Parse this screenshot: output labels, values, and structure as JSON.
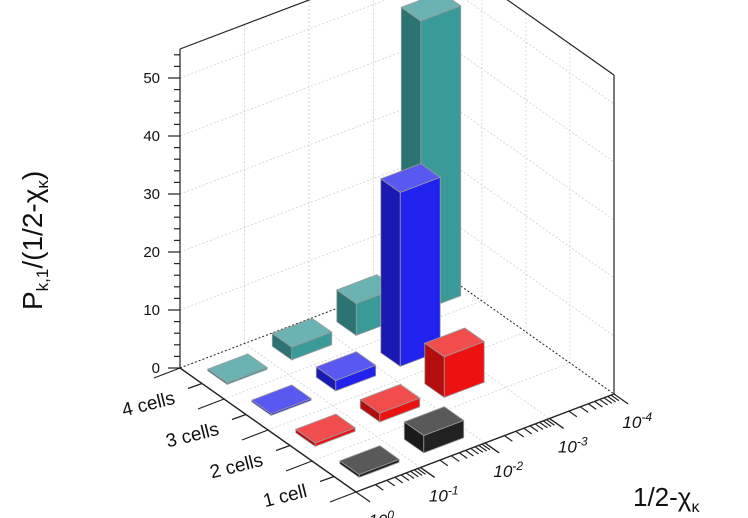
{
  "chart_data": {
    "type": "bar3d",
    "ylabel_main": "P",
    "ylabel_sub": "k,1",
    "ylabel_rest": "/(1/2-χ",
    "ylabel_sub2": "κ",
    "ylabel_close": ")",
    "xlabel_main": "1/2-χ",
    "xlabel_sub": "κ",
    "x_scale": "log",
    "x_ticks": [
      {
        "base": "10",
        "exp": "0"
      },
      {
        "base": "10",
        "exp": "-1"
      },
      {
        "base": "10",
        "exp": "-2"
      },
      {
        "base": "10",
        "exp": "-3"
      },
      {
        "base": "10",
        "exp": "-4"
      }
    ],
    "z_ticks": [
      "0",
      "10",
      "20",
      "30",
      "40",
      "50"
    ],
    "zlim": [
      0,
      55
    ],
    "series": [
      {
        "name": "1 cell",
        "color": "#222222",
        "values": [
          0.5,
          3,
          0,
          0,
          0
        ]
      },
      {
        "name": "2 cells",
        "color": "#ee1111",
        "values": [
          0.6,
          1.5,
          7,
          0,
          0
        ]
      },
      {
        "name": "3 cells",
        "color": "#2222ee",
        "values": [
          0.3,
          1.8,
          30,
          0,
          0
        ]
      },
      {
        "name": "4 cells",
        "color": "#3a9a98",
        "values": [
          0.3,
          2.2,
          5.5,
          50,
          0
        ]
      }
    ]
  }
}
